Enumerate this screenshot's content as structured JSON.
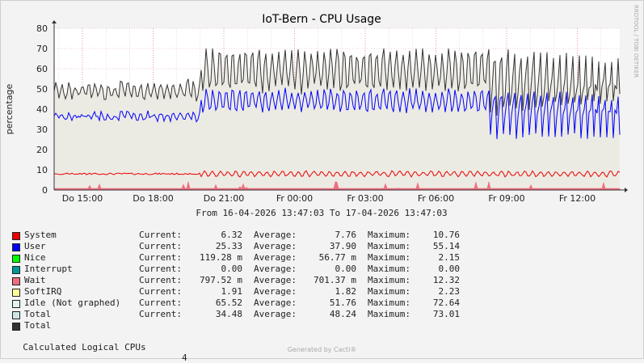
{
  "chart_data": {
    "type": "area",
    "title": "IoT-Bern - CPU Usage",
    "ylabel": "percentage",
    "side_label": "RRDTOOL / TOBI OETIKER",
    "ylim": [
      0,
      80
    ],
    "yticks": [
      0,
      10,
      20,
      30,
      40,
      50,
      60,
      70,
      80
    ],
    "xticks": [
      "Do 15:00",
      "Do 18:00",
      "Do 21:00",
      "Fr 00:00",
      "Fr 03:00",
      "Fr 06:00",
      "Fr 09:00",
      "Fr 12:00"
    ],
    "xtick_hours": [
      1.2,
      4.2,
      7.2,
      10.2,
      13.2,
      16.2,
      19.2,
      22.2
    ],
    "x_span_hours": 24,
    "range_text": "From 16-04-2026 13:47:03 To 17-04-2026 13:47:03",
    "grid": true,
    "series": [
      {
        "name": "System",
        "color": "#EA0000",
        "approx_level": 8
      },
      {
        "name": "User",
        "color": "#0000FF",
        "approx_level": 38
      },
      {
        "name": "Wait",
        "color": "#F06E80",
        "approx_level": 0.8
      },
      {
        "name": "Total",
        "color": "#333333",
        "approx_level": 48
      }
    ]
  },
  "legend": [
    {
      "name": "System",
      "color": "#EA0000",
      "current": "6.32",
      "average": "7.76",
      "maximum": "10.76"
    },
    {
      "name": "User",
      "color": "#0000FF",
      "current": "25.33",
      "average": "37.90",
      "maximum": "55.14"
    },
    {
      "name": "Nice",
      "color": "#00FF00",
      "current": "119.28 m",
      "average": "56.77 m",
      "maximum": "2.15"
    },
    {
      "name": "Interrupt",
      "color": "#009999",
      "current": "0.00",
      "average": "0.00",
      "maximum": "0.00"
    },
    {
      "name": "Wait",
      "color": "#F06E80",
      "current": "797.52 m",
      "average": "701.37 m",
      "maximum": "12.32"
    },
    {
      "name": "SoftIRQ",
      "color": "#FFFF99",
      "current": "1.91",
      "average": "1.82",
      "maximum": "2.23"
    },
    {
      "name": "Idle (Not graphed)",
      "color": "#E4F2F2",
      "current": "65.52",
      "average": "51.76",
      "maximum": "72.64"
    },
    {
      "name": "Total",
      "color": "#CCE5E5",
      "current": "34.48",
      "average": "48.24",
      "maximum": "73.01"
    },
    {
      "name": "Total",
      "color": "#333333"
    }
  ],
  "labels": {
    "current": "Current:",
    "average": "Average:",
    "maximum": "Maximum:"
  },
  "logical_cpus": {
    "label": "Calculated Logical CPUs",
    "value": "4"
  },
  "footer": "Generated by Cacti®"
}
